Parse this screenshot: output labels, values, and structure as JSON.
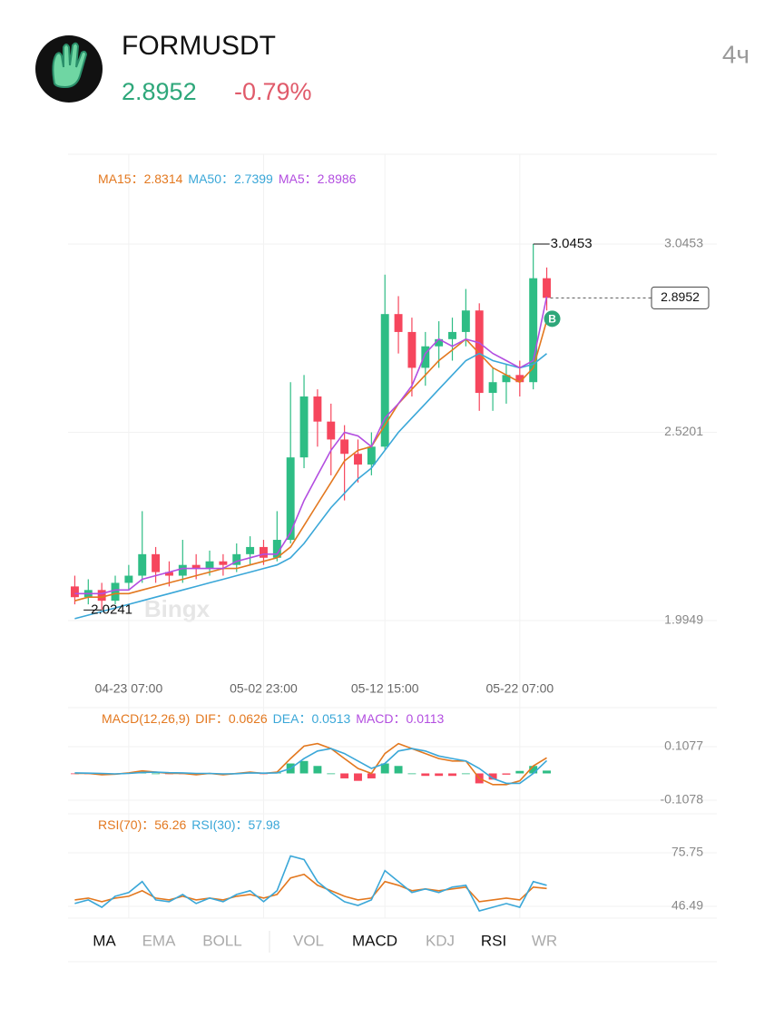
{
  "header": {
    "symbol": "FORMUSDT",
    "price": "2.8952",
    "change": "-0.79%",
    "interval": "4ч"
  },
  "label_separator": "：",
  "watermark": "Bingx",
  "badge": "B",
  "chart_data": [
    {
      "type": "candlestick",
      "categories": [
        null,
        null,
        null,
        null,
        "04-23 07:00",
        null,
        null,
        null,
        null,
        null,
        null,
        null,
        null,
        null,
        "05-02 23:00",
        null,
        null,
        null,
        null,
        null,
        null,
        null,
        null,
        "05-12 15:00",
        null,
        null,
        null,
        null,
        null,
        null,
        null,
        null,
        null,
        "05-22 07:00",
        null,
        null
      ],
      "open": [
        2.09,
        2.06,
        2.08,
        2.05,
        2.1,
        2.12,
        2.18,
        2.13,
        2.12,
        2.15,
        2.14,
        2.16,
        2.15,
        2.18,
        2.2,
        2.17,
        2.22,
        2.45,
        2.62,
        2.55,
        2.5,
        2.46,
        2.43,
        2.48,
        2.85,
        2.8,
        2.7,
        2.76,
        2.78,
        2.8,
        2.86,
        2.63,
        2.66,
        2.68,
        2.66,
        2.95
      ],
      "high": [
        2.12,
        2.11,
        2.1,
        2.12,
        2.15,
        2.3,
        2.2,
        2.16,
        2.22,
        2.18,
        2.19,
        2.18,
        2.21,
        2.23,
        2.22,
        2.3,
        2.66,
        2.68,
        2.64,
        2.6,
        2.54,
        2.5,
        2.52,
        2.96,
        2.9,
        2.84,
        2.8,
        2.83,
        2.84,
        2.92,
        2.88,
        2.7,
        2.71,
        2.72,
        3.0453,
        2.98
      ],
      "low": [
        2.04,
        2.04,
        2.0241,
        2.04,
        2.08,
        2.1,
        2.1,
        2.09,
        2.1,
        2.11,
        2.12,
        2.12,
        2.13,
        2.15,
        2.15,
        2.16,
        2.21,
        2.42,
        2.48,
        2.4,
        2.33,
        2.38,
        2.4,
        2.47,
        2.74,
        2.62,
        2.65,
        2.7,
        2.72,
        2.76,
        2.58,
        2.58,
        2.6,
        2.62,
        2.64,
        2.86
      ],
      "close": [
        2.06,
        2.08,
        2.05,
        2.1,
        2.12,
        2.18,
        2.13,
        2.12,
        2.15,
        2.14,
        2.16,
        2.15,
        2.18,
        2.2,
        2.17,
        2.22,
        2.45,
        2.62,
        2.55,
        2.5,
        2.46,
        2.43,
        2.48,
        2.85,
        2.8,
        2.7,
        2.76,
        2.78,
        2.8,
        2.86,
        2.63,
        2.66,
        2.68,
        2.66,
        2.95,
        2.8952
      ],
      "up_color": "#2ebd85",
      "down_color": "#f6465d",
      "series": [
        {
          "name": "MA15",
          "color": "#e3781f",
          "values": [
            2.05,
            2.06,
            2.06,
            2.07,
            2.07,
            2.08,
            2.09,
            2.1,
            2.11,
            2.12,
            2.13,
            2.14,
            2.14,
            2.15,
            2.16,
            2.17,
            2.2,
            2.26,
            2.32,
            2.38,
            2.44,
            2.47,
            2.48,
            2.54,
            2.6,
            2.64,
            2.68,
            2.72,
            2.75,
            2.78,
            2.74,
            2.7,
            2.68,
            2.66,
            2.7,
            2.8314
          ]
        },
        {
          "name": "MA50",
          "color": "#3aa7d8",
          "values": [
            2.0,
            2.01,
            2.02,
            2.03,
            2.04,
            2.05,
            2.06,
            2.07,
            2.08,
            2.09,
            2.1,
            2.11,
            2.12,
            2.13,
            2.14,
            2.15,
            2.17,
            2.21,
            2.26,
            2.31,
            2.35,
            2.39,
            2.42,
            2.47,
            2.52,
            2.56,
            2.6,
            2.64,
            2.68,
            2.72,
            2.74,
            2.72,
            2.71,
            2.7,
            2.71,
            2.7399
          ]
        },
        {
          "name": "MA5",
          "color": "#b34ee0",
          "values": [
            2.07,
            2.07,
            2.07,
            2.08,
            2.08,
            2.11,
            2.12,
            2.13,
            2.14,
            2.14,
            2.14,
            2.14,
            2.16,
            2.17,
            2.18,
            2.18,
            2.24,
            2.33,
            2.4,
            2.47,
            2.52,
            2.51,
            2.48,
            2.56,
            2.6,
            2.65,
            2.74,
            2.78,
            2.76,
            2.78,
            2.77,
            2.74,
            2.72,
            2.7,
            2.72,
            2.8986
          ]
        }
      ],
      "ylim": [
        1.853,
        3.296
      ],
      "yticks": [
        3.0453,
        2.5201,
        1.9949
      ]
    },
    {
      "type": "macd",
      "title": "MACD(12,26,9)",
      "title_color": "#e3781f",
      "up_color": "#2ebd85",
      "down_color": "#f6465d",
      "series": [
        {
          "name": "DIF",
          "kind": "line",
          "color": "#e3781f",
          "values": [
            0.0,
            0.0,
            -0.005,
            -0.003,
            0.002,
            0.01,
            0.005,
            0.0,
            0.0,
            -0.005,
            0.0,
            -0.005,
            0.0,
            0.005,
            0.0,
            0.005,
            0.06,
            0.11,
            0.12,
            0.1,
            0.06,
            0.02,
            0.0,
            0.08,
            0.12,
            0.1,
            0.08,
            0.06,
            0.05,
            0.05,
            -0.02,
            -0.045,
            -0.045,
            -0.03,
            0.03,
            0.0626
          ]
        },
        {
          "name": "DEA",
          "kind": "line",
          "color": "#3aa7d8",
          "values": [
            0.002,
            0.001,
            0.0,
            -0.002,
            0.0,
            0.004,
            0.005,
            0.003,
            0.002,
            0.0,
            0.0,
            -0.002,
            -0.001,
            0.002,
            0.001,
            0.002,
            0.02,
            0.06,
            0.09,
            0.1,
            0.08,
            0.05,
            0.02,
            0.04,
            0.09,
            0.1,
            0.09,
            0.07,
            0.06,
            0.05,
            0.02,
            -0.02,
            -0.04,
            -0.04,
            0.0,
            0.0513
          ]
        },
        {
          "name": "MACD",
          "kind": "bar",
          "color": "#b34ee0",
          "values": [
            -0.002,
            -0.001,
            -0.005,
            -0.001,
            0.002,
            0.006,
            0.0,
            -0.003,
            -0.002,
            -0.005,
            0.0,
            -0.003,
            0.001,
            0.003,
            -0.001,
            0.003,
            0.04,
            0.05,
            0.03,
            0.0,
            -0.02,
            -0.03,
            -0.02,
            0.04,
            0.03,
            0.0,
            -0.01,
            -0.01,
            -0.01,
            0.0,
            -0.04,
            -0.025,
            -0.005,
            0.01,
            0.03,
            0.0113
          ]
        }
      ],
      "ylim": [
        -0.137,
        0.2099
      ],
      "yticks": [
        0.1077,
        -0.1078
      ]
    },
    {
      "type": "rsi",
      "series": [
        {
          "name": "RSI(70)",
          "kind": "line",
          "color": "#e3781f",
          "values": [
            50,
            51,
            49,
            51,
            52,
            55,
            51,
            50,
            52,
            50,
            51,
            50,
            52,
            53,
            51,
            53,
            62,
            64,
            58,
            55,
            52,
            50,
            51,
            60,
            58,
            55,
            56,
            55,
            56,
            57,
            49,
            50,
            51,
            50,
            57,
            56.26
          ]
        },
        {
          "name": "RSI(30)",
          "kind": "line",
          "color": "#3aa7d8",
          "values": [
            48,
            50,
            46,
            52,
            54,
            60,
            50,
            49,
            53,
            48,
            51,
            49,
            53,
            55,
            49,
            55,
            74,
            72,
            60,
            54,
            49,
            47,
            50,
            66,
            60,
            54,
            56,
            54,
            57,
            58,
            44,
            46,
            48,
            46,
            60,
            57.98
          ]
        }
      ],
      "ylim": [
        40.04,
        93.1
      ],
      "yticks": [
        75.75,
        46.49
      ]
    }
  ],
  "tabs": [
    {
      "label": "MA",
      "active": true
    },
    {
      "label": "EMA",
      "active": false
    },
    {
      "label": "BOLL",
      "active": false
    },
    {
      "label": "VOL",
      "active": false
    },
    {
      "label": "MACD",
      "active": true
    },
    {
      "label": "KDJ",
      "active": false
    },
    {
      "label": "RSI",
      "active": true
    },
    {
      "label": "WR",
      "active": false
    }
  ]
}
